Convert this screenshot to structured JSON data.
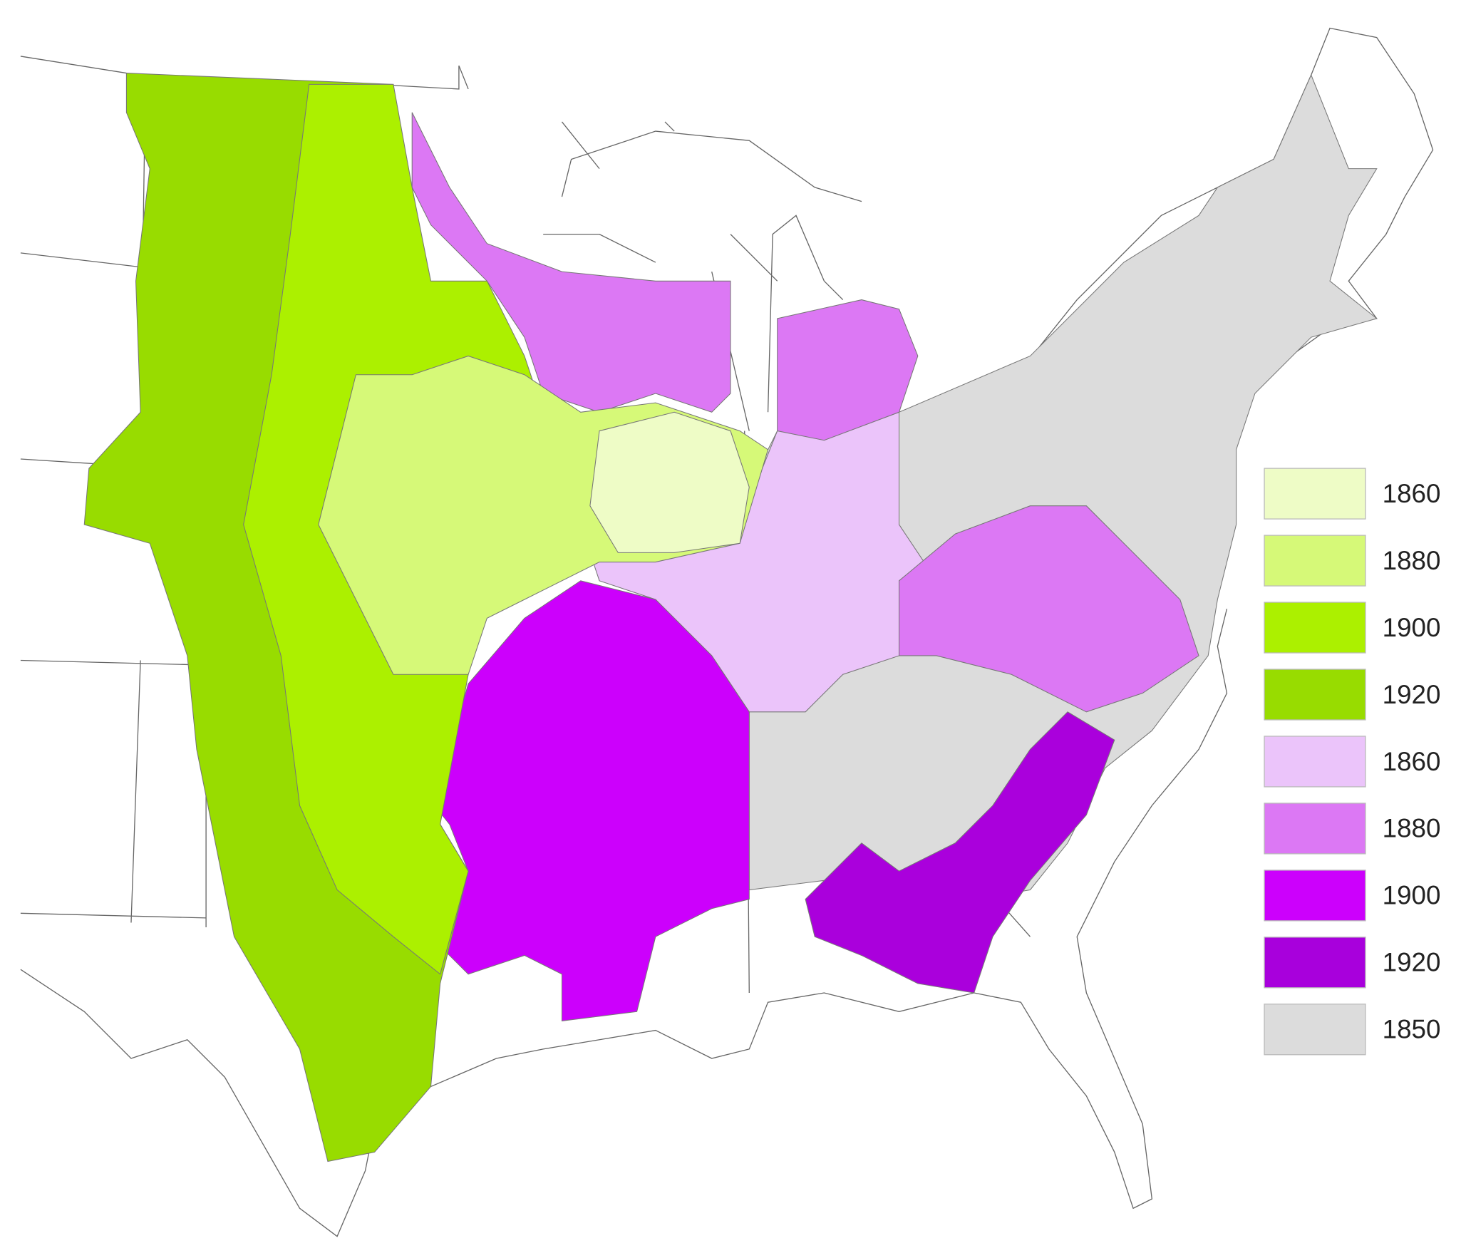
{
  "legend": {
    "items": [
      {
        "label": "1860",
        "color": "#eefcc6"
      },
      {
        "label": "1880",
        "color": "#d6f978"
      },
      {
        "label": "1900",
        "color": "#acf000"
      },
      {
        "label": "1920",
        "color": "#98dc00"
      },
      {
        "label": "1860",
        "color": "#ebc4fa"
      },
      {
        "label": "1880",
        "color": "#dc78f4"
      },
      {
        "label": "1900",
        "color": "#cc00fc"
      },
      {
        "label": "1920",
        "color": "#a800dc"
      },
      {
        "label": "1850",
        "color": "#dcdcdc"
      }
    ]
  }
}
